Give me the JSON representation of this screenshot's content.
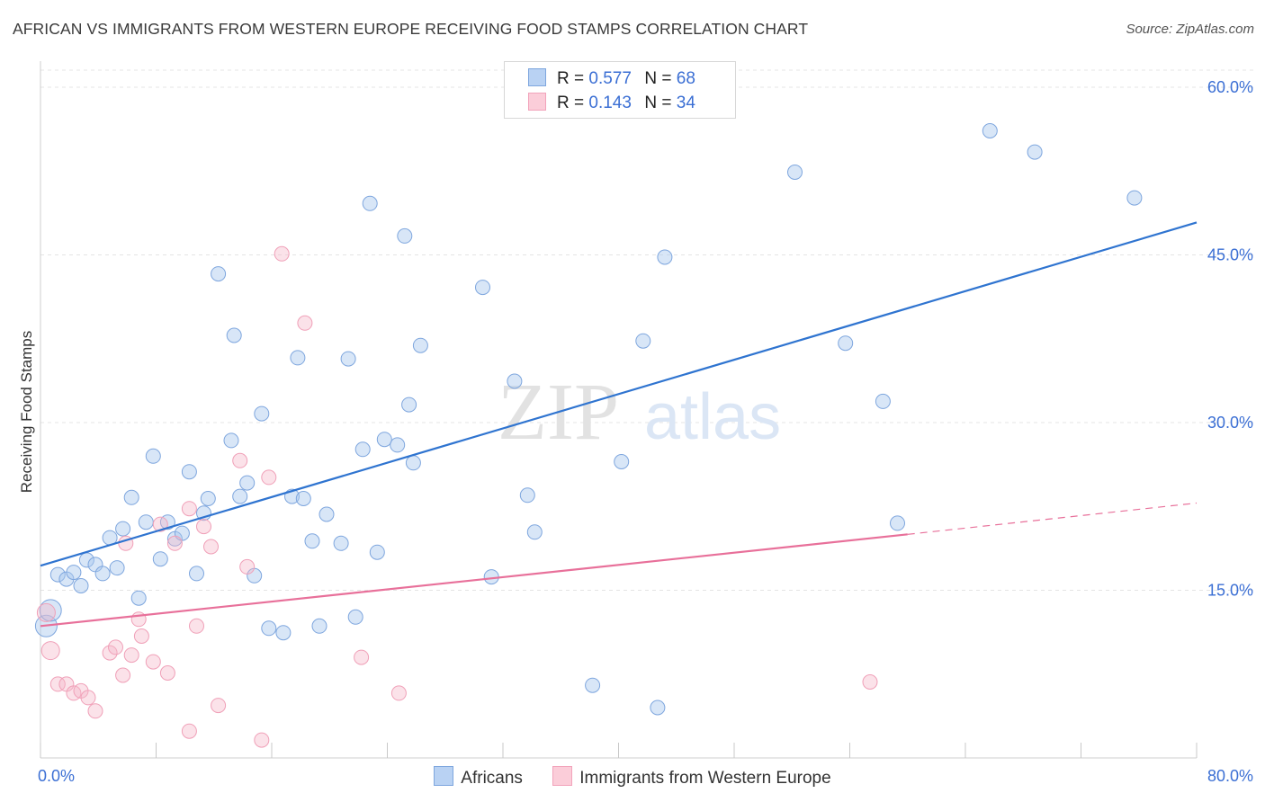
{
  "title": "AFRICAN VS IMMIGRANTS FROM WESTERN EUROPE RECEIVING FOOD STAMPS CORRELATION CHART",
  "source": "Source: ZipAtlas.com",
  "watermark": {
    "zip": "ZIP",
    "atlas": "atlas"
  },
  "legend": {
    "r_label": "R =",
    "n_label": "N =",
    "rows": [
      {
        "r": "0.577",
        "n": "68"
      },
      {
        "r": "0.143",
        "n": "34"
      }
    ]
  },
  "chart_data": {
    "type": "scatter",
    "title": "AFRICAN VS IMMIGRANTS FROM WESTERN EUROPE RECEIVING FOOD STAMPS CORRELATION CHART",
    "xlabel": "",
    "ylabel": "Receiving Food Stamps",
    "xlim": [
      0,
      80
    ],
    "ylim": [
      0,
      60
    ],
    "x_tick_labels": [
      "0.0%",
      "80.0%"
    ],
    "y_ticks": [
      15,
      30,
      45,
      60
    ],
    "y_tick_labels": [
      "15.0%",
      "30.0%",
      "45.0%",
      "60.0%"
    ],
    "grid": true,
    "legend_position": "bottom",
    "colors": {
      "africans": "#a9c7ee",
      "africans_line": "#2f74d0",
      "western_europe": "#f6b6c8",
      "western_europe_line": "#e8709a"
    },
    "series": [
      {
        "name": "Africans",
        "trend": {
          "x": [
            0,
            80
          ],
          "y": [
            17.2,
            47.9
          ]
        },
        "points": [
          [
            0.4,
            11.8
          ],
          [
            0.7,
            13.2
          ],
          [
            1.2,
            16.4
          ],
          [
            1.8,
            16.0
          ],
          [
            2.3,
            16.6
          ],
          [
            2.8,
            15.4
          ],
          [
            3.2,
            17.7
          ],
          [
            3.8,
            17.3
          ],
          [
            4.3,
            16.5
          ],
          [
            4.8,
            19.7
          ],
          [
            5.3,
            17.0
          ],
          [
            5.7,
            20.5
          ],
          [
            6.3,
            23.3
          ],
          [
            6.8,
            14.3
          ],
          [
            7.3,
            21.1
          ],
          [
            7.8,
            27.0
          ],
          [
            8.3,
            17.8
          ],
          [
            8.8,
            21.1
          ],
          [
            9.3,
            19.6
          ],
          [
            9.8,
            20.1
          ],
          [
            10.3,
            25.6
          ],
          [
            10.8,
            16.5
          ],
          [
            11.3,
            21.9
          ],
          [
            11.6,
            23.2
          ],
          [
            12.3,
            43.3
          ],
          [
            13.2,
            28.4
          ],
          [
            13.4,
            37.8
          ],
          [
            13.8,
            23.4
          ],
          [
            14.3,
            24.6
          ],
          [
            14.8,
            16.3
          ],
          [
            15.3,
            30.8
          ],
          [
            15.8,
            11.6
          ],
          [
            16.8,
            11.2
          ],
          [
            17.4,
            23.4
          ],
          [
            17.8,
            35.8
          ],
          [
            18.2,
            23.2
          ],
          [
            18.8,
            19.4
          ],
          [
            19.3,
            11.8
          ],
          [
            19.8,
            21.8
          ],
          [
            20.8,
            19.2
          ],
          [
            21.3,
            35.7
          ],
          [
            21.8,
            12.6
          ],
          [
            22.3,
            27.6
          ],
          [
            22.8,
            49.6
          ],
          [
            23.3,
            18.4
          ],
          [
            23.8,
            28.5
          ],
          [
            24.7,
            28.0
          ],
          [
            25.2,
            46.7
          ],
          [
            25.5,
            31.6
          ],
          [
            25.8,
            26.4
          ],
          [
            26.3,
            36.9
          ],
          [
            30.6,
            42.1
          ],
          [
            31.2,
            16.2
          ],
          [
            32.8,
            33.7
          ],
          [
            33.7,
            23.5
          ],
          [
            34.2,
            20.2
          ],
          [
            38.2,
            6.5
          ],
          [
            40.2,
            26.5
          ],
          [
            41.7,
            37.3
          ],
          [
            42.7,
            4.5
          ],
          [
            43.2,
            44.8
          ],
          [
            52.2,
            52.4
          ],
          [
            55.7,
            37.1
          ],
          [
            58.3,
            31.9
          ],
          [
            59.3,
            21.0
          ],
          [
            65.7,
            56.1
          ],
          [
            68.8,
            54.2
          ],
          [
            75.7,
            50.1
          ]
        ]
      },
      {
        "name": "Immigrants from Western Europe",
        "trend": {
          "x": [
            0,
            60
          ],
          "y": [
            11.8,
            20.0
          ]
        },
        "trend_extension": {
          "x": [
            60,
            80
          ],
          "y": [
            20.0,
            22.8
          ]
        },
        "points": [
          [
            0.4,
            13.0
          ],
          [
            0.7,
            9.6
          ],
          [
            1.2,
            6.6
          ],
          [
            1.8,
            6.6
          ],
          [
            2.3,
            5.8
          ],
          [
            2.8,
            6.0
          ],
          [
            3.3,
            5.4
          ],
          [
            3.8,
            4.2
          ],
          [
            4.8,
            9.4
          ],
          [
            5.2,
            9.9
          ],
          [
            5.7,
            7.4
          ],
          [
            5.9,
            19.2
          ],
          [
            6.3,
            9.2
          ],
          [
            6.8,
            12.4
          ],
          [
            7.0,
            10.9
          ],
          [
            7.8,
            8.6
          ],
          [
            8.3,
            20.9
          ],
          [
            8.8,
            7.6
          ],
          [
            9.3,
            19.2
          ],
          [
            10.3,
            2.4
          ],
          [
            10.3,
            22.3
          ],
          [
            10.8,
            11.8
          ],
          [
            11.3,
            20.7
          ],
          [
            11.8,
            18.9
          ],
          [
            12.3,
            4.7
          ],
          [
            13.8,
            26.6
          ],
          [
            14.3,
            17.1
          ],
          [
            15.3,
            1.6
          ],
          [
            15.8,
            25.1
          ],
          [
            16.7,
            45.1
          ],
          [
            18.3,
            38.9
          ],
          [
            22.2,
            9.0
          ],
          [
            24.8,
            5.8
          ],
          [
            57.4,
            6.8
          ]
        ]
      }
    ]
  }
}
